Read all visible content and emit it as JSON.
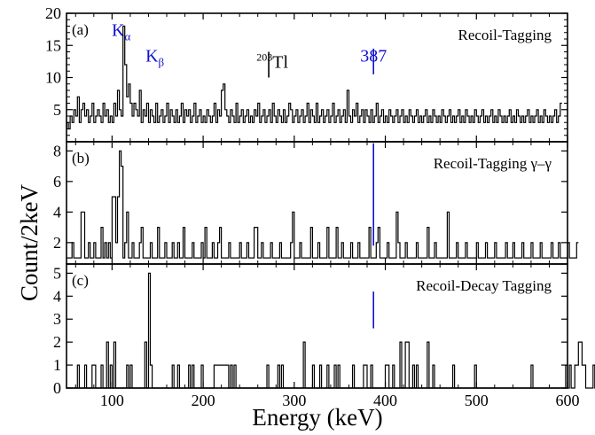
{
  "figure": {
    "ylabel": "Count/2keV",
    "xlabel": "Energy (keV)",
    "x_tick_labels": [
      "100",
      "200",
      "300",
      "400",
      "500",
      "600"
    ]
  },
  "chart_data": [
    {
      "type": "line",
      "step": true,
      "panel_label": "(a)",
      "title": "Recoil-Tagging",
      "xlim": [
        50,
        600
      ],
      "ylim": [
        0,
        20
      ],
      "y_tick_labels": [
        "5",
        "10",
        "15",
        "20"
      ],
      "bin_width": 2,
      "x_start": 50,
      "baseline": 2,
      "values": [
        3,
        2,
        4,
        3,
        5,
        4,
        7,
        3,
        5,
        6,
        4,
        5,
        3,
        4,
        6,
        3,
        4,
        5,
        4,
        3,
        6,
        4,
        5,
        3,
        4,
        3,
        6,
        4,
        8,
        5,
        4,
        18,
        12,
        7,
        9,
        6,
        4,
        6,
        5,
        4,
        8,
        3,
        5,
        4,
        6,
        3,
        5,
        4,
        3,
        6,
        3,
        4,
        5,
        3,
        4,
        6,
        3,
        5,
        4,
        3,
        5,
        3,
        4,
        6,
        3,
        5,
        4,
        5,
        3,
        4,
        6,
        3,
        4,
        5,
        3,
        4,
        3,
        5,
        4,
        3,
        4,
        6,
        3,
        5,
        4,
        8,
        9,
        5,
        4,
        3,
        5,
        4,
        3,
        6,
        3,
        4,
        5,
        3,
        4,
        5,
        3,
        4,
        3,
        5,
        4,
        6,
        3,
        4,
        5,
        3,
        4,
        5,
        3,
        6,
        4,
        3,
        5,
        4,
        3,
        5,
        3,
        4,
        6,
        5,
        3,
        4,
        5,
        3,
        4,
        5,
        3,
        4,
        6,
        3,
        5,
        4,
        3,
        6,
        3,
        4,
        5,
        3,
        4,
        5,
        3,
        4,
        6,
        3,
        4,
        5,
        3,
        4,
        5,
        3,
        8,
        4,
        3,
        5,
        4,
        6,
        3,
        4,
        5,
        3,
        5,
        4,
        3,
        5,
        3,
        4,
        6,
        3,
        4,
        5,
        3,
        4,
        3,
        5,
        4,
        3,
        4,
        5,
        3,
        4,
        5,
        3,
        4,
        3,
        5,
        4,
        3,
        4,
        5,
        3,
        4,
        3,
        4,
        5,
        3,
        4,
        3,
        5,
        4,
        3,
        4,
        3,
        5,
        4,
        3,
        4,
        5,
        3,
        4,
        3,
        4,
        5,
        3,
        4,
        3,
        5,
        4,
        3,
        4,
        3,
        5,
        4,
        3,
        4,
        5,
        3,
        4,
        3,
        4,
        5,
        3,
        4,
        3,
        5,
        4,
        3,
        4,
        3,
        4,
        5,
        3,
        4,
        3,
        5,
        4,
        3,
        4,
        3,
        4,
        5,
        3,
        4,
        3,
        4,
        5,
        3,
        4,
        3,
        5,
        4,
        3,
        4,
        3,
        4,
        5,
        3,
        4,
        6
      ],
      "annotations": [
        {
          "text": "K",
          "sub": "α",
          "x": 110,
          "y": 16.5,
          "color": "#1010d0"
        },
        {
          "text": "K",
          "sub": "β",
          "x": 147,
          "y": 12.5,
          "color": "#1010d0"
        },
        {
          "sup": "203",
          "text": "Tl",
          "x": 276,
          "y": 11.5,
          "color": "#000000"
        },
        {
          "text": "387",
          "x": 387,
          "y": 12.5,
          "color": "#1010d0"
        }
      ],
      "markers": [
        {
          "x": 272,
          "y0": 10,
          "y1": 14,
          "color": "#000000"
        },
        {
          "x": 387,
          "y0": 10.5,
          "y1": 14.5,
          "color": "#1010d0"
        }
      ]
    },
    {
      "type": "line",
      "step": true,
      "panel_label": "(b)",
      "title": "Recoil-Tagging γ–γ",
      "xlim": [
        50,
        600
      ],
      "ylim": [
        0.6,
        8.6
      ],
      "y_tick_labels": [
        "2",
        "4",
        "6",
        "8"
      ],
      "bin_width": 2,
      "x_start": 50,
      "baseline": 1,
      "values": [
        1,
        1,
        1,
        2,
        1,
        1,
        1,
        1,
        4,
        4,
        1,
        1,
        2,
        1,
        1,
        2,
        1,
        1,
        1,
        3,
        1,
        2,
        1,
        2,
        1,
        5,
        5,
        2,
        5,
        8,
        7,
        1,
        2,
        4,
        1,
        1,
        2,
        1,
        1,
        1,
        2,
        3,
        1,
        1,
        1,
        1,
        2,
        1,
        1,
        1,
        3,
        1,
        1,
        1,
        2,
        1,
        1,
        1,
        2,
        1,
        1,
        2,
        1,
        1,
        3,
        1,
        1,
        1,
        1,
        2,
        1,
        1,
        1,
        1,
        2,
        1,
        3,
        1,
        1,
        1,
        2,
        1,
        1,
        2,
        3,
        1,
        1,
        1,
        1,
        2,
        1,
        1,
        1,
        1,
        1,
        2,
        1,
        1,
        1,
        2,
        1,
        1,
        1,
        3,
        3,
        1,
        1,
        2,
        1,
        1,
        1,
        1,
        2,
        1,
        1,
        1,
        1,
        2,
        1,
        1,
        1,
        1,
        1,
        2,
        4,
        1,
        1,
        1,
        2,
        1,
        1,
        1,
        1,
        1,
        3,
        1,
        1,
        1,
        2,
        1,
        1,
        1,
        1,
        3,
        1,
        1,
        1,
        1,
        3,
        1,
        1,
        2,
        1,
        1,
        1,
        1,
        2,
        1,
        1,
        1,
        2,
        1,
        1,
        1,
        1,
        1,
        3,
        1,
        1,
        1,
        2,
        3,
        1,
        1,
        1,
        1,
        2,
        1,
        1,
        1,
        1,
        4,
        2,
        1,
        1,
        1,
        2,
        1,
        1,
        1,
        1,
        1,
        2,
        1,
        1,
        1,
        1,
        1,
        3,
        1,
        1,
        1,
        2,
        1,
        1,
        1,
        1,
        1,
        1,
        4,
        1,
        1,
        1,
        1,
        2,
        1,
        1,
        1,
        1,
        2,
        1,
        1,
        1,
        1,
        1,
        2,
        1,
        1,
        1,
        1,
        2,
        1,
        1,
        1,
        1,
        2,
        1,
        1,
        1,
        1,
        1,
        2,
        1,
        1,
        1,
        2,
        1,
        1,
        1,
        1,
        2,
        1,
        1,
        1,
        1,
        2,
        1,
        1,
        1,
        1,
        2,
        1,
        1,
        1,
        1,
        1,
        2,
        1,
        1,
        1,
        2,
        1,
        1,
        1,
        1,
        2,
        1,
        1,
        1,
        1,
        2
      ],
      "markers": [
        {
          "x": 387,
          "y0": 1.8,
          "y1": 8.5,
          "color": "#1010d0"
        }
      ]
    },
    {
      "type": "line",
      "step": true,
      "panel_label": "(c)",
      "title": "Recoil-Decay Tagging",
      "xlim": [
        50,
        600
      ],
      "ylim": [
        0,
        5.4
      ],
      "y_tick_labels": [
        "0",
        "1",
        "2",
        "3",
        "4",
        "5"
      ],
      "bin_width": 2,
      "x_start": 50,
      "baseline": 0,
      "values": [
        0,
        0,
        0,
        0,
        0,
        0,
        1,
        0,
        0,
        0,
        1,
        0,
        0,
        0,
        1,
        1,
        0,
        0,
        0,
        1,
        0,
        0,
        2,
        0,
        1,
        0,
        2,
        0,
        0,
        0,
        0,
        0,
        0,
        1,
        0,
        1,
        0,
        0,
        0,
        0,
        0,
        0,
        0,
        2,
        0,
        5,
        1,
        0,
        0,
        0,
        0,
        0,
        0,
        0,
        0,
        0,
        0,
        0,
        1,
        0,
        0,
        1,
        0,
        0,
        0,
        0,
        0,
        1,
        0,
        1,
        0,
        0,
        0,
        0,
        1,
        0,
        0,
        0,
        0,
        0,
        0,
        1,
        1,
        1,
        1,
        1,
        1,
        1,
        1,
        0,
        1,
        0,
        1,
        0,
        0,
        0,
        0,
        0,
        0,
        0,
        0,
        0,
        0,
        0,
        0,
        0,
        0,
        0,
        0,
        0,
        1,
        0,
        0,
        0,
        0,
        0,
        1,
        0,
        1,
        0,
        0,
        0,
        0,
        0,
        0,
        0,
        0,
        0,
        0,
        0,
        2,
        0,
        0,
        0,
        0,
        1,
        0,
        0,
        0,
        1,
        0,
        0,
        0,
        1,
        0,
        0,
        0,
        1,
        0,
        1,
        0,
        0,
        0,
        0,
        0,
        0,
        0,
        1,
        0,
        0,
        0,
        0,
        0,
        1,
        1,
        0,
        0,
        1,
        0,
        0,
        0,
        0,
        0,
        0,
        0,
        1,
        1,
        0,
        0,
        1,
        0,
        0,
        0,
        2,
        0,
        0,
        2,
        2,
        0,
        0,
        1,
        0,
        1,
        0,
        0,
        0,
        0,
        0,
        2,
        0,
        0,
        1,
        0,
        0,
        0,
        0,
        0,
        0,
        0,
        0,
        0,
        0,
        1,
        0,
        0,
        0,
        0,
        0,
        0,
        0,
        0,
        0,
        0,
        0,
        1,
        0,
        0,
        0,
        0,
        0,
        0,
        0,
        0,
        0,
        0,
        0,
        0,
        0,
        0,
        0,
        0,
        0,
        0,
        0,
        0,
        0,
        0,
        0,
        0,
        0,
        0,
        0,
        0,
        0,
        0,
        1,
        0,
        0,
        0,
        0,
        0,
        0,
        0,
        0,
        0,
        0,
        0,
        0,
        0,
        0,
        0,
        0,
        0,
        0,
        1,
        0,
        1,
        0,
        0,
        1,
        1,
        2,
        2,
        1,
        1,
        0,
        0,
        0,
        0,
        1,
        0,
        0,
        1,
        1,
        0,
        1
      ],
      "markers": [
        {
          "x": 387,
          "y0": 2.6,
          "y1": 4.2,
          "color": "#1010d0"
        }
      ]
    }
  ]
}
